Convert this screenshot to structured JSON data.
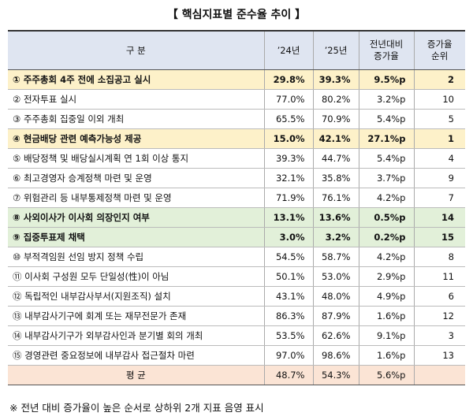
{
  "title": "【 핵심지표별 준수율 추이 】",
  "table": {
    "header": [
      [
        "구 분"
      ],
      [
        "’24년"
      ],
      [
        "’25년"
      ],
      [
        "전년대비",
        "증가율"
      ],
      [
        "증가율",
        "순위"
      ]
    ],
    "rows": [
      {
        "cells": [
          "① 주주총회 4주 전에 소집공고 실시",
          "29.8%",
          "39.3%",
          "9.5%p",
          "2"
        ],
        "highlight": "#fdf1c9"
      },
      {
        "cells": [
          "② 전자투표 실시",
          "77.0%",
          "80.2%",
          "3.2%p",
          "10"
        ]
      },
      {
        "cells": [
          "③ 주주총회 집중일 이외 개최",
          "65.5%",
          "70.9%",
          "5.4%p",
          "5"
        ]
      },
      {
        "cells": [
          "④ 현금배당 관련 예측가능성 제공",
          "15.0%",
          "42.1%",
          "27.1%p",
          "1"
        ],
        "highlight": "#fdf1c9"
      },
      {
        "cells": [
          "⑤ 배당정책 및 배당실시계획 연 1회 이상 통지",
          "39.3%",
          "44.7%",
          "5.4%p",
          "4"
        ]
      },
      {
        "cells": [
          "⑥ 최고경영자 승계정책 마련 및 운영",
          "32.1%",
          "35.8%",
          "3.7%p",
          "9"
        ]
      },
      {
        "cells": [
          "⑦ 위험관리 등 내부통제정책 마련 및 운영",
          "71.9%",
          "76.1%",
          "4.2%p",
          "7"
        ]
      },
      {
        "cells": [
          "⑧ 사외이사가 이사회 의장인지 여부",
          "13.1%",
          "13.6%",
          "0.5%p",
          "14"
        ],
        "highlight": "#e2f0d9"
      },
      {
        "cells": [
          "⑨ 집중투표제 채택",
          "3.0%",
          "3.2%",
          "0.2%p",
          "15"
        ],
        "highlight": "#e2f0d9"
      },
      {
        "cells": [
          "⑩ 부적격임원 선임 방지 정책 수립",
          "54.5%",
          "58.7%",
          "4.2%p",
          "8"
        ]
      },
      {
        "cells": [
          "⑪ 이사회 구성원 모두 단일성(性)이 아님",
          "50.1%",
          "53.0%",
          "2.9%p",
          "11"
        ]
      },
      {
        "cells": [
          "⑫ 독립적인 내부감사부서(지원조직) 설치",
          "43.1%",
          "48.0%",
          "4.9%p",
          "6"
        ]
      },
      {
        "cells": [
          "⑬ 내부감사기구에 회계 또는 재무전문가 존재",
          "86.3%",
          "87.9%",
          "1.6%p",
          "12"
        ]
      },
      {
        "cells": [
          "⑭ 내부감사기구가 외부감사인과 분기별 회의 개최",
          "53.5%",
          "62.6%",
          "9.1%p",
          "3"
        ]
      },
      {
        "cells": [
          "⑮ 경영관련 중요정보에 내부감사 접근절차 마련",
          "97.0%",
          "98.6%",
          "1.6%p",
          "13"
        ]
      }
    ],
    "average": [
      "평 균",
      "48.7%",
      "54.3%",
      "5.6%p"
    ]
  },
  "footnote": "※ 전년 대비 증가율이 높은 순서로 상하위 2개 지표 음영 표시"
}
